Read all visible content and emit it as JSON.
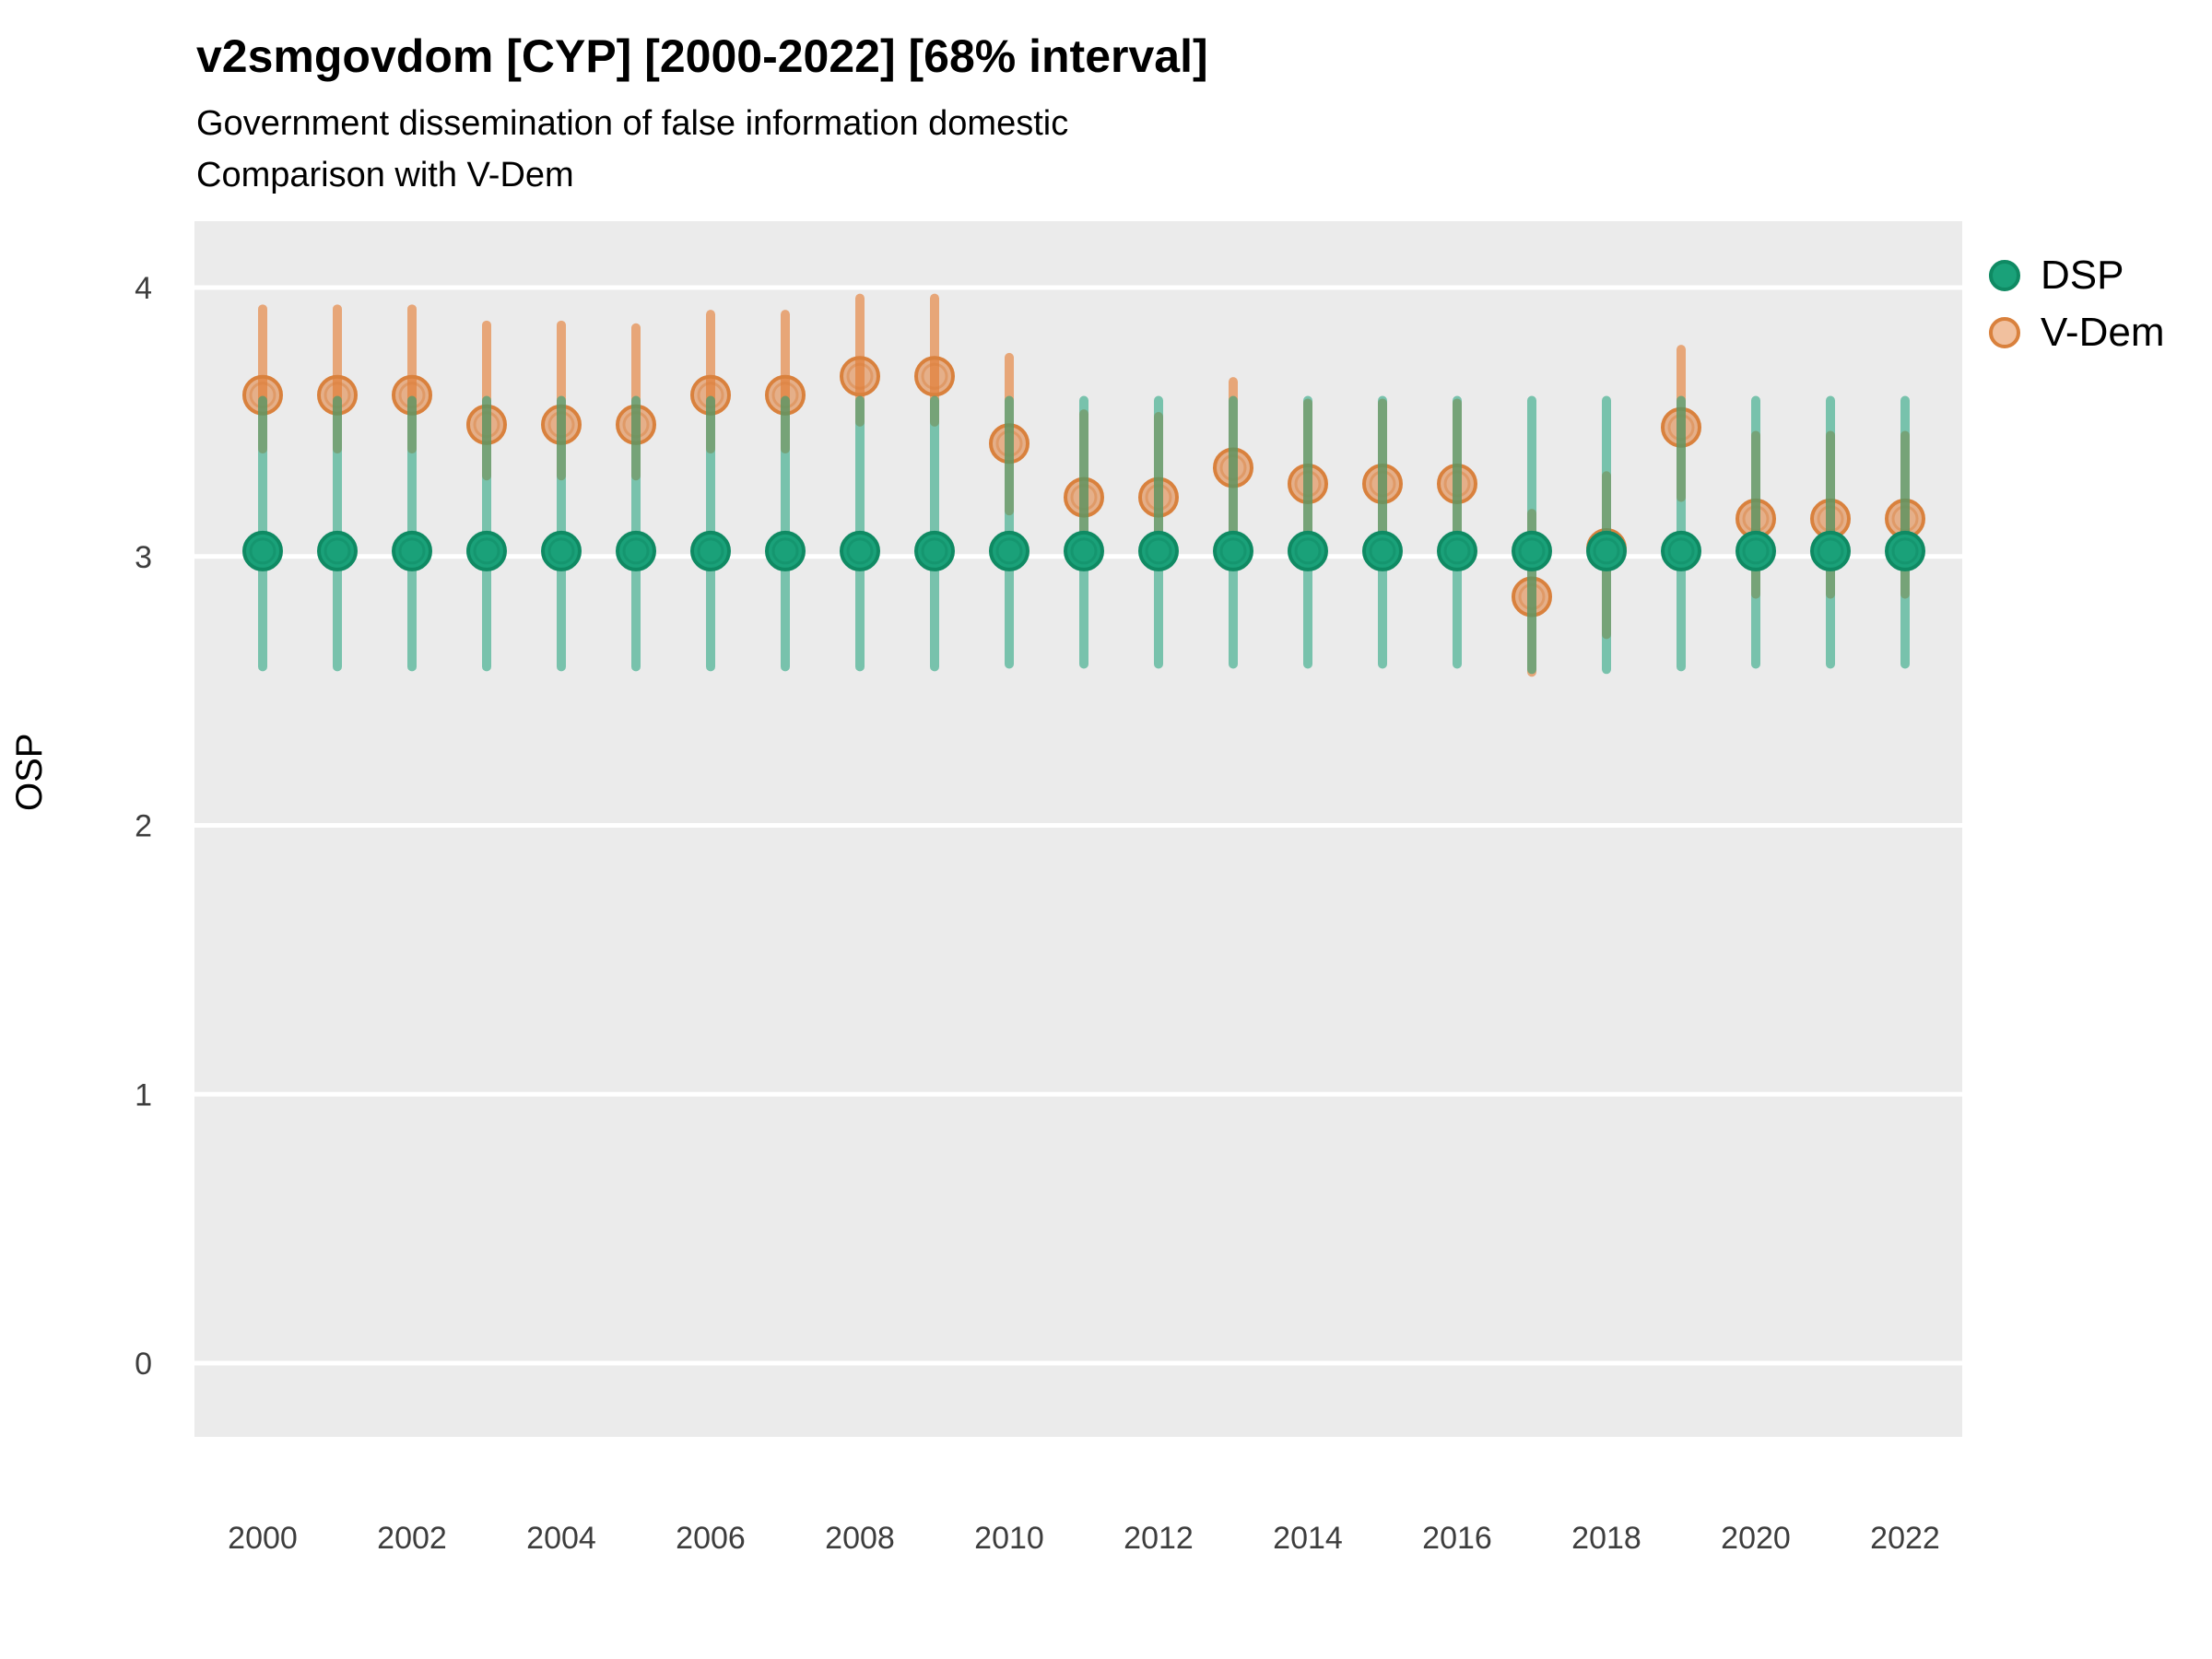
{
  "header": {
    "title": "v2smgovdom [CYP] [2000-2022] [68% interval]",
    "subtitle1": "Government dissemination of false information domestic",
    "subtitle2": "Comparison with V-Dem"
  },
  "colors": {
    "background": "#ffffff",
    "panel": "#ebebeb",
    "gridline": "#ffffff",
    "axis_text": "#3d3d3d",
    "dsp_point_fill": "#1aa179",
    "dsp_point_stroke": "#0f8a63",
    "dsp_bar": "rgba(26,161,121,0.55)",
    "vdem_bar": "rgba(228,116,36,0.58)",
    "vdem_point_fill": "rgba(224,116,40,0.5)",
    "vdem_point_stroke": "#d9813d"
  },
  "chart_data": {
    "type": "scatter",
    "subtype": "pointrange-comparison",
    "title": "v2smgovdom [CYP] [2000-2022] [68% interval]",
    "xlabel": "",
    "ylabel": "OSP",
    "interval_level": "68%",
    "x_ticks": [
      2000,
      2002,
      2004,
      2006,
      2008,
      2010,
      2012,
      2014,
      2016,
      2018,
      2020,
      2022
    ],
    "y_ticks": [
      0,
      1,
      2,
      3,
      4
    ],
    "xlim": [
      1999.0,
      2022.8
    ],
    "ylim": [
      -0.28,
      4.26
    ],
    "grid": "horizontal-major-only",
    "legend_position": "right",
    "legend": [
      "DSP",
      "V-Dem"
    ],
    "series": [
      {
        "name": "DSP",
        "style": "dsp",
        "points": [
          {
            "x": 2000,
            "y": 3.02,
            "lo": 2.59,
            "hi": 3.58
          },
          {
            "x": 2001,
            "y": 3.02,
            "lo": 2.59,
            "hi": 3.58
          },
          {
            "x": 2002,
            "y": 3.02,
            "lo": 2.59,
            "hi": 3.58
          },
          {
            "x": 2003,
            "y": 3.02,
            "lo": 2.59,
            "hi": 3.58
          },
          {
            "x": 2004,
            "y": 3.02,
            "lo": 2.59,
            "hi": 3.58
          },
          {
            "x": 2005,
            "y": 3.02,
            "lo": 2.59,
            "hi": 3.58
          },
          {
            "x": 2006,
            "y": 3.02,
            "lo": 2.59,
            "hi": 3.58
          },
          {
            "x": 2007,
            "y": 3.02,
            "lo": 2.59,
            "hi": 3.58
          },
          {
            "x": 2008,
            "y": 3.02,
            "lo": 2.59,
            "hi": 3.58
          },
          {
            "x": 2009,
            "y": 3.02,
            "lo": 2.59,
            "hi": 3.58
          },
          {
            "x": 2010,
            "y": 3.02,
            "lo": 2.6,
            "hi": 3.58
          },
          {
            "x": 2011,
            "y": 3.02,
            "lo": 2.6,
            "hi": 3.58
          },
          {
            "x": 2012,
            "y": 3.02,
            "lo": 2.6,
            "hi": 3.58
          },
          {
            "x": 2013,
            "y": 3.02,
            "lo": 2.6,
            "hi": 3.58
          },
          {
            "x": 2014,
            "y": 3.02,
            "lo": 2.6,
            "hi": 3.58
          },
          {
            "x": 2015,
            "y": 3.02,
            "lo": 2.6,
            "hi": 3.58
          },
          {
            "x": 2016,
            "y": 3.02,
            "lo": 2.6,
            "hi": 3.58
          },
          {
            "x": 2017,
            "y": 3.02,
            "lo": 2.58,
            "hi": 3.58
          },
          {
            "x": 2018,
            "y": 3.02,
            "lo": 2.58,
            "hi": 3.58
          },
          {
            "x": 2019,
            "y": 3.02,
            "lo": 2.59,
            "hi": 3.58
          },
          {
            "x": 2020,
            "y": 3.02,
            "lo": 2.6,
            "hi": 3.58
          },
          {
            "x": 2021,
            "y": 3.02,
            "lo": 2.6,
            "hi": 3.58
          },
          {
            "x": 2022,
            "y": 3.02,
            "lo": 2.6,
            "hi": 3.58
          }
        ]
      },
      {
        "name": "V-Dem",
        "style": "vdem",
        "points": [
          {
            "x": 2000,
            "y": 3.6,
            "lo": 3.4,
            "hi": 3.92
          },
          {
            "x": 2001,
            "y": 3.6,
            "lo": 3.4,
            "hi": 3.92
          },
          {
            "x": 2002,
            "y": 3.6,
            "lo": 3.4,
            "hi": 3.92
          },
          {
            "x": 2003,
            "y": 3.49,
            "lo": 3.3,
            "hi": 3.86
          },
          {
            "x": 2004,
            "y": 3.49,
            "lo": 3.3,
            "hi": 3.86
          },
          {
            "x": 2005,
            "y": 3.49,
            "lo": 3.3,
            "hi": 3.85
          },
          {
            "x": 2006,
            "y": 3.6,
            "lo": 3.4,
            "hi": 3.9
          },
          {
            "x": 2007,
            "y": 3.6,
            "lo": 3.4,
            "hi": 3.9
          },
          {
            "x": 2008,
            "y": 3.67,
            "lo": 3.5,
            "hi": 3.96
          },
          {
            "x": 2009,
            "y": 3.67,
            "lo": 3.5,
            "hi": 3.96
          },
          {
            "x": 2010,
            "y": 3.42,
            "lo": 3.17,
            "hi": 3.74
          },
          {
            "x": 2011,
            "y": 3.22,
            "lo": 3.07,
            "hi": 3.53
          },
          {
            "x": 2012,
            "y": 3.22,
            "lo": 3.07,
            "hi": 3.52
          },
          {
            "x": 2013,
            "y": 3.33,
            "lo": 3.08,
            "hi": 3.65
          },
          {
            "x": 2014,
            "y": 3.27,
            "lo": 3.05,
            "hi": 3.57
          },
          {
            "x": 2015,
            "y": 3.27,
            "lo": 3.05,
            "hi": 3.57
          },
          {
            "x": 2016,
            "y": 3.27,
            "lo": 3.05,
            "hi": 3.57
          },
          {
            "x": 2017,
            "y": 2.85,
            "lo": 2.57,
            "hi": 3.16
          },
          {
            "x": 2018,
            "y": 3.03,
            "lo": 2.71,
            "hi": 3.3
          },
          {
            "x": 2019,
            "y": 3.48,
            "lo": 3.22,
            "hi": 3.77
          },
          {
            "x": 2020,
            "y": 3.14,
            "lo": 2.86,
            "hi": 3.45
          },
          {
            "x": 2021,
            "y": 3.14,
            "lo": 2.86,
            "hi": 3.45
          },
          {
            "x": 2022,
            "y": 3.14,
            "lo": 2.86,
            "hi": 3.45
          }
        ]
      }
    ]
  }
}
